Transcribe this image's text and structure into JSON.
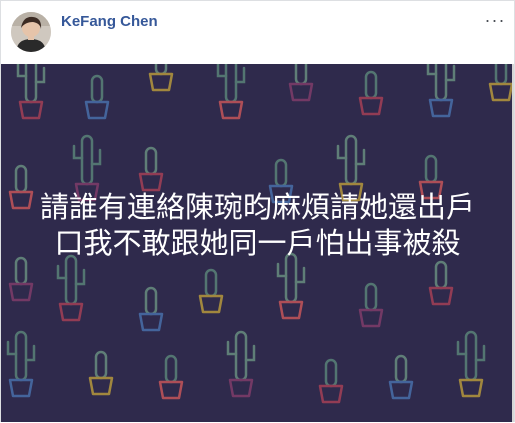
{
  "post": {
    "author_name": "KeFang Chen",
    "more_icon": "ellipsis-horizontal-icon",
    "more_label": "···",
    "text": "請誰有連絡陳琬昀麻煩請她還出戶口我不敢跟她同一戶怕出事被殺",
    "background": {
      "color": "#2f2a4c",
      "pattern": "cactus-in-pots",
      "pattern_colors": [
        "#5f8f7e",
        "#6f9a86",
        "#b44257",
        "#4c78b6",
        "#c7a63a",
        "#d95b5b",
        "#8a3f6e"
      ]
    }
  }
}
